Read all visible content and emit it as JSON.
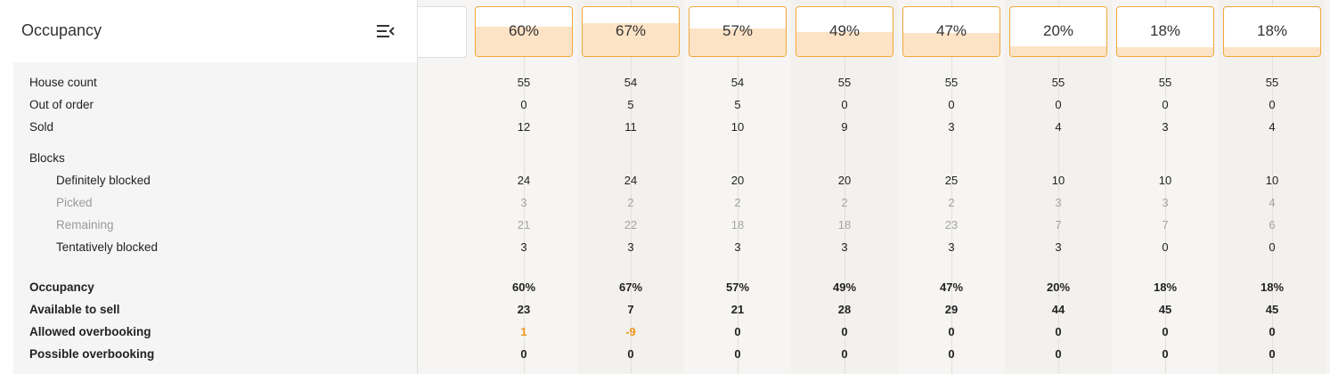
{
  "panel": {
    "title": "Occupancy",
    "collapse_icon": "menu-collapse-icon"
  },
  "rows": [
    {
      "key": "house_count",
      "label": "House count",
      "style": "normal"
    },
    {
      "key": "out_of_order",
      "label": "Out of order",
      "style": "normal"
    },
    {
      "key": "sold",
      "label": "Sold",
      "style": "normal"
    },
    {
      "key": "blocks",
      "label": "Blocks",
      "style": "normal"
    },
    {
      "key": "definitely_blocked",
      "label": "Definitely blocked",
      "style": "indent"
    },
    {
      "key": "picked",
      "label": "Picked",
      "style": "indent-muted"
    },
    {
      "key": "remaining",
      "label": "Remaining",
      "style": "indent-muted"
    },
    {
      "key": "tentatively_blocked",
      "label": "Tentatively blocked",
      "style": "indent"
    },
    {
      "key": "occupancy",
      "label": "Occupancy",
      "style": "bold"
    },
    {
      "key": "available_to_sell",
      "label": "Available to sell",
      "style": "bold"
    },
    {
      "key": "allowed_overbooking",
      "label": "Allowed overbooking",
      "style": "bold"
    },
    {
      "key": "possible_overbooking",
      "label": "Possible overbooking",
      "style": "bold"
    }
  ],
  "columns": [
    {
      "card_label": "60%",
      "occupancy_level": 0.6,
      "values": {
        "house_count": "55",
        "out_of_order": "0",
        "sold": "12",
        "definitely_blocked": "24",
        "picked": "3",
        "remaining": "21",
        "tentatively_blocked": "3",
        "occupancy": "60%",
        "available_to_sell": "23",
        "allowed_overbooking": "1",
        "possible_overbooking": "0"
      }
    },
    {
      "card_label": "67%",
      "occupancy_level": 0.67,
      "values": {
        "house_count": "54",
        "out_of_order": "5",
        "sold": "11",
        "definitely_blocked": "24",
        "picked": "2",
        "remaining": "22",
        "tentatively_blocked": "3",
        "occupancy": "67%",
        "available_to_sell": "7",
        "allowed_overbooking": "-9",
        "possible_overbooking": "0"
      }
    },
    {
      "card_label": "57%",
      "occupancy_level": 0.57,
      "values": {
        "house_count": "54",
        "out_of_order": "5",
        "sold": "10",
        "definitely_blocked": "20",
        "picked": "2",
        "remaining": "18",
        "tentatively_blocked": "3",
        "occupancy": "57%",
        "available_to_sell": "21",
        "allowed_overbooking": "0",
        "possible_overbooking": "0"
      }
    },
    {
      "card_label": "49%",
      "occupancy_level": 0.49,
      "values": {
        "house_count": "55",
        "out_of_order": "0",
        "sold": "9",
        "definitely_blocked": "20",
        "picked": "2",
        "remaining": "18",
        "tentatively_blocked": "3",
        "occupancy": "49%",
        "available_to_sell": "28",
        "allowed_overbooking": "0",
        "possible_overbooking": "0"
      }
    },
    {
      "card_label": "47%",
      "occupancy_level": 0.47,
      "values": {
        "house_count": "55",
        "out_of_order": "0",
        "sold": "3",
        "definitely_blocked": "25",
        "picked": "2",
        "remaining": "23",
        "tentatively_blocked": "3",
        "occupancy": "47%",
        "available_to_sell": "29",
        "allowed_overbooking": "0",
        "possible_overbooking": "0"
      }
    },
    {
      "card_label": "20%",
      "occupancy_level": 0.2,
      "values": {
        "house_count": "55",
        "out_of_order": "0",
        "sold": "4",
        "definitely_blocked": "10",
        "picked": "3",
        "remaining": "7",
        "tentatively_blocked": "3",
        "occupancy": "20%",
        "available_to_sell": "44",
        "allowed_overbooking": "0",
        "possible_overbooking": "0"
      }
    },
    {
      "card_label": "18%",
      "occupancy_level": 0.18,
      "values": {
        "house_count": "55",
        "out_of_order": "0",
        "sold": "3",
        "definitely_blocked": "10",
        "picked": "3",
        "remaining": "7",
        "tentatively_blocked": "0",
        "occupancy": "18%",
        "available_to_sell": "45",
        "allowed_overbooking": "0",
        "possible_overbooking": "0"
      }
    },
    {
      "card_label": "18%",
      "occupancy_level": 0.18,
      "values": {
        "house_count": "55",
        "out_of_order": "0",
        "sold": "4",
        "definitely_blocked": "10",
        "picked": "4",
        "remaining": "6",
        "tentatively_blocked": "0",
        "occupancy": "18%",
        "available_to_sell": "45",
        "allowed_overbooking": "0",
        "possible_overbooking": "0"
      }
    }
  ],
  "colors": {
    "card_border": "#f0a83a",
    "card_fill": "#fde3c6",
    "negative_or_overbooking": "#f0961e",
    "muted_text": "#a5a5a5"
  }
}
